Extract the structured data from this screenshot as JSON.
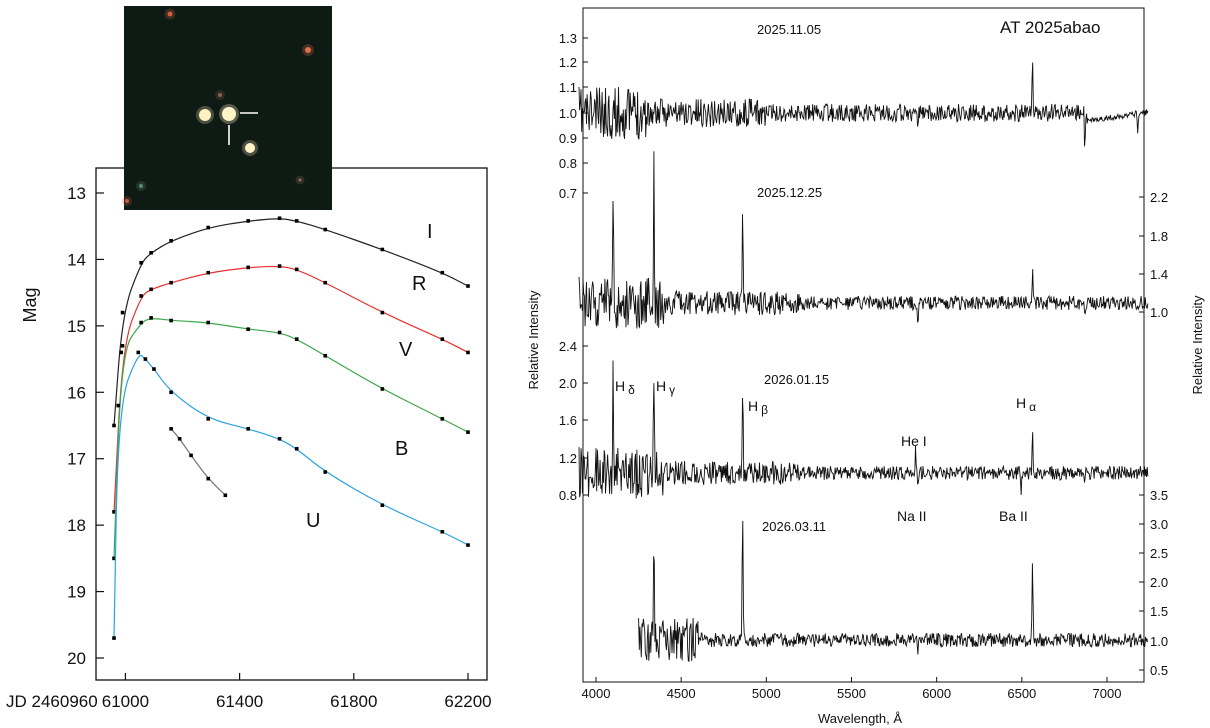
{
  "photo": {
    "description_colors": {
      "bg": "#0e1a14",
      "target": "#fff3c8"
    }
  },
  "colors": {
    "I": "#222222",
    "R": "#e8312e",
    "V": "#3aa84a",
    "B": "#2aa3dc",
    "U": "#777777",
    "band_label_I": "#b8845a",
    "band_label_R": "#e03030",
    "band_label_V": "#3aa84a",
    "band_label_B": "#2aa3dc",
    "band_label_U": "#111111"
  },
  "chart_data": [
    {
      "type": "line",
      "ylabel": "Mag",
      "x_prefix": "JD 2460960",
      "x_ticks": [
        "61000",
        "61400",
        "61800",
        "62200"
      ],
      "y_ticks": [
        "13",
        "14",
        "15",
        "16",
        "17",
        "18",
        "19",
        "20"
      ],
      "xlim": [
        60960,
        62200
      ],
      "ylim": [
        20.0,
        12.0
      ],
      "y_inverted": true,
      "series": [
        {
          "name": "I",
          "x": [
            60960,
            60990,
            61055,
            61090,
            61160,
            61290,
            61430,
            61540,
            61600,
            61700,
            61900,
            62110,
            62200
          ],
          "y": [
            16.5,
            14.8,
            14.05,
            13.9,
            13.72,
            13.52,
            13.42,
            13.38,
            13.42,
            13.55,
            13.85,
            14.2,
            14.4
          ]
        },
        {
          "name": "R",
          "x": [
            60960,
            60990,
            61055,
            61090,
            61160,
            61290,
            61430,
            61540,
            61600,
            61700,
            61900,
            62110,
            62200
          ],
          "y": [
            17.8,
            15.3,
            14.55,
            14.45,
            14.35,
            14.2,
            14.12,
            14.1,
            14.15,
            14.35,
            14.8,
            15.2,
            15.4
          ]
        },
        {
          "name": "V",
          "x": [
            60960,
            60985,
            61055,
            61090,
            61160,
            61290,
            61430,
            61540,
            61600,
            61700,
            61900,
            62110,
            62200
          ],
          "y": [
            18.5,
            15.4,
            14.95,
            14.88,
            14.92,
            14.95,
            15.05,
            15.1,
            15.2,
            15.45,
            15.95,
            16.4,
            16.6
          ]
        },
        {
          "name": "B",
          "x": [
            60960,
            60975,
            61045,
            61070,
            61100,
            61160,
            61290,
            61430,
            61540,
            61600,
            61700,
            61900,
            62110,
            62200
          ],
          "y": [
            19.7,
            16.2,
            15.4,
            15.5,
            15.65,
            16.0,
            16.4,
            16.55,
            16.7,
            16.85,
            17.2,
            17.7,
            18.1,
            18.3
          ]
        },
        {
          "name": "U",
          "x": [
            61160,
            61190,
            61230,
            61290,
            61350
          ],
          "y": [
            16.55,
            16.7,
            16.95,
            17.3,
            17.55
          ]
        }
      ],
      "band_labels": [
        "I",
        "R",
        "V",
        "B",
        "U"
      ]
    },
    {
      "type": "line",
      "title": "AT 2025abao",
      "xlabel": "Wavelength, Å",
      "ylabel_left": "Relative Intensity",
      "ylabel_right": "Relative Intensity",
      "x_ticks": [
        "4000",
        "4500",
        "5000",
        "5500",
        "6000",
        "6500",
        "7000"
      ],
      "xlim": [
        3900,
        7250
      ],
      "spectra": [
        {
          "date": "2025.11.05",
          "ticks_side": "left",
          "y_ticks": [
            "1.3",
            "1.2",
            "1.1",
            "1.0",
            "0.9",
            "0.8",
            "0.7"
          ]
        },
        {
          "date": "2025.12.25",
          "ticks_side": "right",
          "y_ticks": [
            "2.2",
            "1.8",
            "1.4",
            "1.0"
          ]
        },
        {
          "date": "2026.01.15",
          "ticks_side": "left",
          "y_ticks": [
            "2.4",
            "2.0",
            "1.6",
            "1.2",
            "0.8"
          ]
        },
        {
          "date": "2026.03.11",
          "ticks_side": "right",
          "y_ticks": [
            "3.5",
            "3.0",
            "2.5",
            "2.0",
            "1.5",
            "1.0",
            "0.5"
          ]
        }
      ],
      "lines": [
        {
          "base": "H",
          "sub": "δ",
          "wavelength": 4101
        },
        {
          "base": "H",
          "sub": "γ",
          "wavelength": 4340
        },
        {
          "base": "H",
          "sub": "β",
          "wavelength": 4861
        },
        {
          "base": "He I",
          "sub": "",
          "wavelength": 5876
        },
        {
          "base": "H",
          "sub": "α",
          "wavelength": 6563
        },
        {
          "base": "Na II",
          "sub": "",
          "wavelength": 5890
        },
        {
          "base": "Ba II",
          "sub": "",
          "wavelength": 6496
        }
      ]
    }
  ]
}
